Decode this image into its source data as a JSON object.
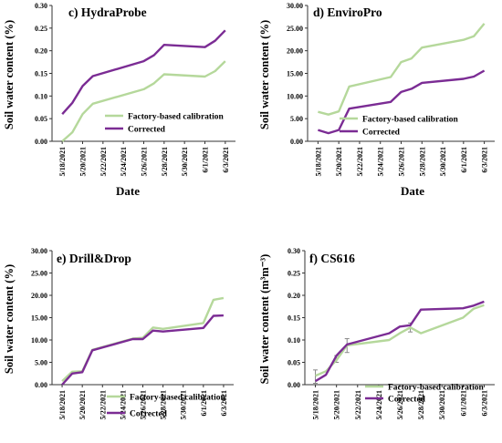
{
  "chart_data": [
    {
      "type": "line",
      "title": "c) HydraProbe",
      "ylabel": "Soil water content (%)",
      "xlabel": "Date",
      "ylim": [
        0,
        0.3
      ],
      "yticks": [
        "0.00",
        "0.05",
        "0.10",
        "0.15",
        "0.20",
        "0.25",
        "0.30"
      ],
      "xticks": [
        "5/18/2021",
        "5/20/2021",
        "5/22/2021",
        "5/24/2021",
        "5/26/2021",
        "5/28/2021",
        "5/30/2021",
        "6/1/2021",
        "6/3/2021"
      ],
      "legend_position": "center",
      "series": [
        {
          "name": "Factory-based calibration",
          "color": "#b5d89b",
          "x": [
            "2021-05-18",
            "2021-05-19",
            "2021-05-20",
            "2021-05-21",
            "2021-05-26",
            "2021-05-27",
            "2021-05-28",
            "2021-06-01",
            "2021-06-02",
            "2021-06-03"
          ],
          "y": [
            0.0,
            0.02,
            0.06,
            0.083,
            0.115,
            0.128,
            0.148,
            0.143,
            0.155,
            0.177
          ]
        },
        {
          "name": "Corrected",
          "color": "#7b2c94",
          "x": [
            "2021-05-18",
            "2021-05-19",
            "2021-05-20",
            "2021-05-21",
            "2021-05-26",
            "2021-05-27",
            "2021-05-28",
            "2021-06-01",
            "2021-06-02",
            "2021-06-03"
          ],
          "y": [
            0.06,
            0.085,
            0.122,
            0.144,
            0.177,
            0.19,
            0.213,
            0.208,
            0.222,
            0.245
          ]
        }
      ]
    },
    {
      "type": "line",
      "title": "d) EnviroPro",
      "ylabel": "Soil water content (%)",
      "xlabel": "Date",
      "ylim": [
        0,
        30
      ],
      "yticks": [
        "0.00",
        "5.00",
        "10.00",
        "15.00",
        "20.00",
        "25.00",
        "30.00"
      ],
      "xticks": [
        "5/18/2021",
        "5/20/2021",
        "5/22/2021",
        "5/24/2021",
        "5/26/2021",
        "5/28/2021",
        "5/30/2021",
        "6/1/2021",
        "6/3/2021"
      ],
      "legend_position": "center",
      "series": [
        {
          "name": "Factory-based calibration",
          "color": "#b5d89b",
          "x": [
            "2021-05-18",
            "2021-05-19",
            "2021-05-20",
            "2021-05-21",
            "2021-05-25",
            "2021-05-26",
            "2021-05-27",
            "2021-05-28",
            "2021-06-01",
            "2021-06-02",
            "2021-06-03"
          ],
          "y": [
            6.5,
            5.9,
            6.6,
            12.1,
            14.2,
            17.5,
            18.3,
            20.7,
            22.4,
            23.2,
            26.0
          ]
        },
        {
          "name": "Corrected",
          "color": "#7b2c94",
          "x": [
            "2021-05-18",
            "2021-05-19",
            "2021-05-20",
            "2021-05-21",
            "2021-05-25",
            "2021-05-26",
            "2021-05-27",
            "2021-05-28",
            "2021-06-01",
            "2021-06-02",
            "2021-06-03"
          ],
          "y": [
            2.5,
            1.8,
            2.5,
            7.2,
            8.7,
            10.9,
            11.6,
            12.9,
            13.8,
            14.3,
            15.6
          ]
        }
      ]
    },
    {
      "type": "line",
      "title": "e) Drill&Drop",
      "ylabel": "Soil water content (%)",
      "xlabel": "",
      "ylim": [
        0,
        30
      ],
      "yticks": [
        "0.00",
        "5.00",
        "10.00",
        "15.00",
        "20.00",
        "25.00",
        "30.00"
      ],
      "xticks": [
        "5/18/2021",
        "5/20/2021",
        "5/22/2021",
        "5/24/2021",
        "5/26/2021",
        "5/28/2021",
        "5/30/2021",
        "6/1/2021",
        "6/3/2021"
      ],
      "legend_position": "bottom-left",
      "series": [
        {
          "name": "Factory-based calibration",
          "color": "#b5d89b",
          "x": [
            "2021-05-18",
            "2021-05-19",
            "2021-05-20",
            "2021-05-21",
            "2021-05-25",
            "2021-05-26",
            "2021-05-27",
            "2021-05-28",
            "2021-06-01",
            "2021-06-02",
            "2021-06-03"
          ],
          "y": [
            0.8,
            2.9,
            3.0,
            7.8,
            10.3,
            10.5,
            12.8,
            12.5,
            13.8,
            19.0,
            19.4
          ]
        },
        {
          "name": "Corrected",
          "color": "#7b2c94",
          "x": [
            "2021-05-18",
            "2021-05-19",
            "2021-05-20",
            "2021-05-21",
            "2021-05-25",
            "2021-05-26",
            "2021-05-27",
            "2021-05-28",
            "2021-06-01",
            "2021-06-02",
            "2021-06-03"
          ],
          "y": [
            0.0,
            2.5,
            2.8,
            7.7,
            10.2,
            10.2,
            12.1,
            11.9,
            12.7,
            15.4,
            15.5
          ]
        }
      ]
    },
    {
      "type": "line",
      "title": "f) CS616",
      "ylabel": "Soil water content (m³m⁻³)",
      "xlabel": "",
      "ylim": [
        0,
        0.3
      ],
      "yticks": [
        "0.00",
        "0.05",
        "0.10",
        "0.15",
        "0.20",
        "0.25",
        "0.30"
      ],
      "xticks": [
        "5/18/2021",
        "5/20/2021",
        "5/22/2021",
        "5/24/2021",
        "5/26/2021",
        "5/28/2021",
        "5/30/2021",
        "6/1/2021",
        "6/3/2021"
      ],
      "legend_position": "bottom-right",
      "series": [
        {
          "name": "Factory-based calibration",
          "color": "#b5d89b",
          "x": [
            "2021-05-18",
            "2021-05-19",
            "2021-05-20",
            "2021-05-21",
            "2021-05-25",
            "2021-05-26",
            "2021-05-27",
            "2021-05-28",
            "2021-06-01",
            "2021-06-02",
            "2021-06-03"
          ],
          "y": [
            0.02,
            0.03,
            0.055,
            0.088,
            0.1,
            0.115,
            0.128,
            0.115,
            0.15,
            0.17,
            0.178
          ]
        },
        {
          "name": "Corrected",
          "color": "#7b2c94",
          "x": [
            "2021-05-18",
            "2021-05-19",
            "2021-05-20",
            "2021-05-21",
            "2021-05-25",
            "2021-05-26",
            "2021-05-27",
            "2021-05-28",
            "2021-06-01",
            "2021-06-02",
            "2021-06-03"
          ],
          "y": [
            0.008,
            0.022,
            0.065,
            0.09,
            0.115,
            0.13,
            0.133,
            0.168,
            0.171,
            0.177,
            0.186
          ]
        }
      ],
      "error_bars": [
        {
          "x": "2021-05-18",
          "low": 0.003,
          "high": 0.033
        },
        {
          "x": "2021-05-20",
          "low": 0.05,
          "high": 0.065
        },
        {
          "x": "2021-05-21",
          "low": 0.072,
          "high": 0.103
        },
        {
          "x": "2021-05-27",
          "low": 0.118,
          "high": 0.138
        }
      ]
    }
  ]
}
